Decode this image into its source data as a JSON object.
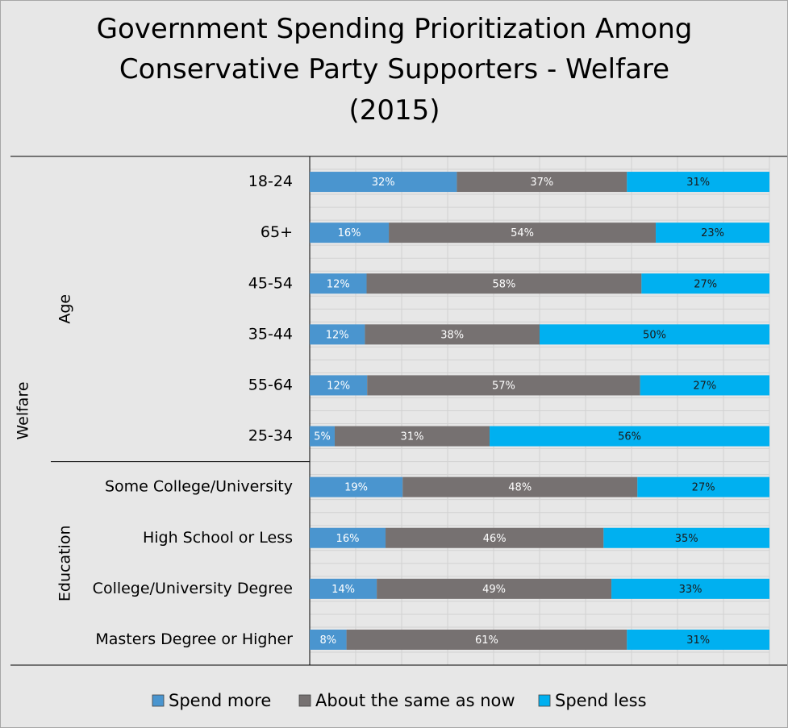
{
  "chart_data": {
    "type": "bar",
    "orientation": "horizontal",
    "stacked": true,
    "title_lines": [
      "Government Spending Prioritization Among",
      "Conservative Party Supporters - Welfare",
      "(2015)"
    ],
    "outer_group": "Welfare",
    "groups": [
      {
        "name": "Age",
        "categories": [
          "18-24",
          "65+",
          "45-54",
          "35-44",
          "55-64",
          "25-34"
        ]
      },
      {
        "name": "Education",
        "categories": [
          "Some College/University",
          "High School or Less",
          "College/University Degree",
          "Masters Degree or Higher"
        ]
      }
    ],
    "categories": [
      "18-24",
      "65+",
      "45-54",
      "35-44",
      "55-64",
      "25-34",
      "Some College/University",
      "High School or Less",
      "College/University Degree",
      "Masters Degree or Higher"
    ],
    "series": [
      {
        "name": "Spend more",
        "color": "#4a95cf",
        "label_color": "#ffffff",
        "values": [
          32,
          16,
          12,
          12,
          12,
          5,
          19,
          16,
          14,
          8
        ],
        "labels": [
          "32%",
          "16%",
          "12%",
          "12%",
          "12%",
          "5%",
          "19%",
          "16%",
          "14%",
          "8%"
        ]
      },
      {
        "name": "About the same as now",
        "color": "#767171",
        "label_color": "#ffffff",
        "values": [
          37,
          54,
          58,
          38,
          57,
          31,
          48,
          46,
          49,
          61
        ],
        "labels": [
          "37%",
          "54%",
          "58%",
          "38%",
          "57%",
          "31%",
          "48%",
          "46%",
          "49%",
          "61%"
        ]
      },
      {
        "name": "Spend less",
        "color": "#00b0f0",
        "label_color": "#1a1a1a",
        "values": [
          31,
          23,
          27,
          50,
          27,
          56,
          27,
          35,
          33,
          31
        ],
        "labels": [
          "31%",
          "23%",
          "27%",
          "50%",
          "27%",
          "56%",
          "27%",
          "35%",
          "33%",
          "31%"
        ]
      }
    ],
    "legend": {
      "position": "bottom"
    },
    "grid": true
  }
}
